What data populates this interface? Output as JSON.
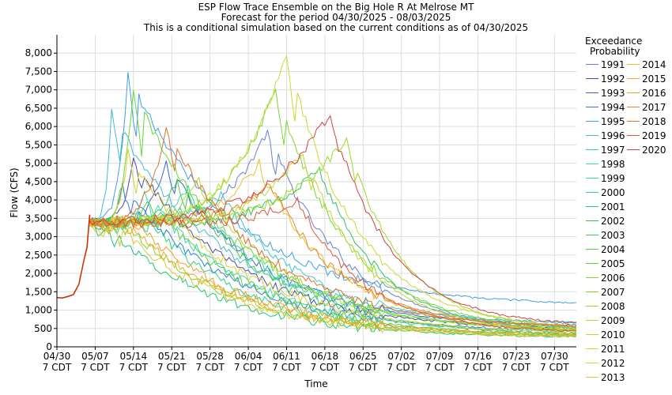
{
  "chart_data": {
    "type": "line",
    "title": "ESP Flow Trace Ensemble on the Big Hole R At Melrose MT",
    "subtitle": "Forecast for the period 04/30/2025 - 08/03/2025",
    "subtitle2": "This is a conditional simulation based on the current conditions as of 04/30/2025",
    "xlabel": "Time",
    "ylabel": "Flow (CFS)",
    "ylim": [
      0,
      8500
    ],
    "yticks": [
      0,
      500,
      1000,
      1500,
      2000,
      2500,
      3000,
      3500,
      4000,
      4500,
      5000,
      5500,
      6000,
      6500,
      7000,
      7500,
      8000
    ],
    "ytick_labels": [
      "0",
      "500",
      "1,000",
      "1,500",
      "2,000",
      "2,500",
      "3,000",
      "3,500",
      "4,000",
      "4,500",
      "5,000",
      "5,500",
      "6,000",
      "6,500",
      "7,000",
      "7,500",
      "8,000"
    ],
    "xlim_days": [
      0,
      95
    ],
    "xticks_day": [
      0,
      7,
      14,
      21,
      28,
      35,
      42,
      49,
      56,
      63,
      70,
      77,
      84,
      91
    ],
    "xtick_labels": [
      "04/30",
      "05/07",
      "05/14",
      "05/21",
      "05/28",
      "06/04",
      "06/11",
      "06/18",
      "06/25",
      "07/02",
      "07/09",
      "07/16",
      "07/23",
      "07/30"
    ],
    "xtick_sublabel": "7 CDT",
    "grid": true,
    "legend_title_1": "Exceedance",
    "legend_title_2": "Probability",
    "legend_position": "right",
    "observed": {
      "x": [
        0,
        1,
        2,
        3,
        4,
        5,
        5.5,
        6
      ],
      "y": [
        1340,
        1330,
        1370,
        1420,
        1700,
        2400,
        2700,
        3600
      ]
    },
    "series": [
      {
        "name": "1991",
        "color": "#6a7fd6",
        "peak_day": 38.5,
        "peak": 5900,
        "mid": 3100,
        "end": 450
      },
      {
        "name": "1992",
        "color": "#4a4aa8",
        "peak_day": 14,
        "peak": 5100,
        "mid": 3200,
        "end": 430
      },
      {
        "name": "1993",
        "color": "#3d66c4",
        "peak_day": 20,
        "peak": 5000,
        "mid": 2900,
        "end": 520
      },
      {
        "name": "1994",
        "color": "#2f7fd0",
        "peak_day": 12,
        "peak": 4400,
        "mid": 2600,
        "end": 380
      },
      {
        "name": "1995",
        "color": "#3fa0e0",
        "peak_day": 13,
        "peak": 7400,
        "mid": 3400,
        "end": 1100
      },
      {
        "name": "1996",
        "color": "#45b8d8",
        "peak_day": 10,
        "peak": 6400,
        "mid": 3300,
        "end": 560
      },
      {
        "name": "1997",
        "color": "#40c8c8",
        "peak_day": 30,
        "peak": 4100,
        "mid": 3500,
        "end": 620
      },
      {
        "name": "1998",
        "color": "#3dd6b8",
        "peak_day": 16,
        "peak": 4200,
        "mid": 2700,
        "end": 340
      },
      {
        "name": "1999",
        "color": "#30d8a0",
        "peak_day": 24,
        "peak": 4300,
        "mid": 3000,
        "end": 470
      },
      {
        "name": "2000",
        "color": "#28d088",
        "peak_day": 15,
        "peak": 3700,
        "mid": 2300,
        "end": 260
      },
      {
        "name": "2001",
        "color": "#20c870",
        "peak_day": 9,
        "peak": 3300,
        "mid": 2100,
        "end": 220
      },
      {
        "name": "2002",
        "color": "#30c060",
        "peak_day": 48,
        "peak": 4900,
        "mid": 3100,
        "end": 380
      },
      {
        "name": "2003",
        "color": "#40c850",
        "peak_day": 22,
        "peak": 4600,
        "mid": 2800,
        "end": 300
      },
      {
        "name": "2004",
        "color": "#55d040",
        "peak_day": 17,
        "peak": 4000,
        "mid": 2500,
        "end": 280
      },
      {
        "name": "2005",
        "color": "#66d838",
        "peak_day": 14,
        "peak": 7000,
        "mid": 3100,
        "end": 360
      },
      {
        "name": "2006",
        "color": "#78d830",
        "peak_day": 40,
        "peak": 7100,
        "mid": 3600,
        "end": 400
      },
      {
        "name": "2007",
        "color": "#88d028",
        "peak_day": 11,
        "peak": 3600,
        "mid": 2200,
        "end": 240
      },
      {
        "name": "2008",
        "color": "#9cd828",
        "peak_day": 53,
        "peak": 5700,
        "mid": 3300,
        "end": 480
      },
      {
        "name": "2009",
        "color": "#acd830",
        "peak_day": 26,
        "peak": 4500,
        "mid": 3000,
        "end": 420
      },
      {
        "name": "2010",
        "color": "#bcd830",
        "peak_day": 45,
        "peak": 5300,
        "mid": 3200,
        "end": 350
      },
      {
        "name": "2011",
        "color": "#ccd830",
        "peak_day": 42,
        "peak": 8000,
        "mid": 3800,
        "end": 440
      },
      {
        "name": "2012",
        "color": "#d8d030",
        "peak_day": 13,
        "peak": 5300,
        "mid": 2900,
        "end": 320
      },
      {
        "name": "2013",
        "color": "#e0c830",
        "peak_day": 10,
        "peak": 3500,
        "mid": 2000,
        "end": 230
      },
      {
        "name": "2014",
        "color": "#e8c028",
        "peak_day": 37,
        "peak": 5000,
        "mid": 3300,
        "end": 400
      },
      {
        "name": "2015",
        "color": "#e8b028",
        "peak_day": 12,
        "peak": 3500,
        "mid": 2400,
        "end": 260
      },
      {
        "name": "2016",
        "color": "#e8a028",
        "peak_day": 13,
        "peak": 3600,
        "mid": 2600,
        "end": 300
      },
      {
        "name": "2017",
        "color": "#e88828",
        "peak_day": 39,
        "peak": 4400,
        "mid": 3300,
        "end": 500
      },
      {
        "name": "2018",
        "color": "#e07030",
        "peak_day": 20,
        "peak": 6000,
        "mid": 3400,
        "end": 480
      },
      {
        "name": "2019",
        "color": "#d85838",
        "peak_day": 44,
        "peak": 4000,
        "mid": 3000,
        "end": 380
      },
      {
        "name": "2020",
        "color": "#d04040",
        "peak_day": 50,
        "peak": 6400,
        "mid": 4000,
        "end": 560
      }
    ]
  }
}
